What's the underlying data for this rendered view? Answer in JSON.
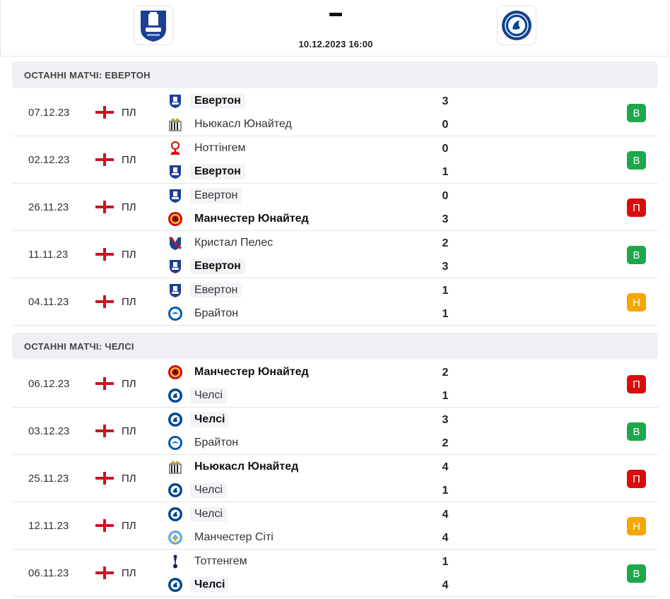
{
  "header": {
    "home_team": "Евертон",
    "away_team": "Челсі",
    "datetime": "10.12.2023 16:00"
  },
  "colors": {
    "win": "#1ca84b",
    "loss": "#d80d0d",
    "draw": "#f6a600",
    "everton": "#1b3f94",
    "chelsea": "#034694"
  },
  "sections": [
    {
      "title": "ОСТАННІ МАТЧІ: ЕВЕРТОН",
      "matches": [
        {
          "date": "07.12.23",
          "competition": "ПЛ",
          "flag": "england-flag-icon",
          "team1": {
            "name": "Евертон",
            "logo": "everton-icon",
            "winner": true,
            "focus": true
          },
          "team2": {
            "name": "Ньюкасл Юнайтед",
            "logo": "newcastle-icon",
            "winner": false,
            "focus": false
          },
          "score1": "3",
          "score2": "0",
          "result": "В",
          "result_type": "win"
        },
        {
          "date": "02.12.23",
          "competition": "ПЛ",
          "flag": "england-flag-icon",
          "team1": {
            "name": "Ноттінгем",
            "logo": "nottingham-icon",
            "winner": false,
            "focus": false
          },
          "team2": {
            "name": "Евертон",
            "logo": "everton-icon",
            "winner": true,
            "focus": true
          },
          "score1": "0",
          "score2": "1",
          "result": "В",
          "result_type": "win"
        },
        {
          "date": "26.11.23",
          "competition": "ПЛ",
          "flag": "england-flag-icon",
          "team1": {
            "name": "Евертон",
            "logo": "everton-icon",
            "winner": false,
            "focus": true
          },
          "team2": {
            "name": "Манчестер Юнайтед",
            "logo": "manutd-icon",
            "winner": true,
            "focus": false
          },
          "score1": "0",
          "score2": "3",
          "result": "П",
          "result_type": "loss"
        },
        {
          "date": "11.11.23",
          "competition": "ПЛ",
          "flag": "england-flag-icon",
          "team1": {
            "name": "Кристал Пелес",
            "logo": "crystal-palace-icon",
            "winner": false,
            "focus": false
          },
          "team2": {
            "name": "Евертон",
            "logo": "everton-icon",
            "winner": true,
            "focus": true
          },
          "score1": "2",
          "score2": "3",
          "result": "В",
          "result_type": "win"
        },
        {
          "date": "04.11.23",
          "competition": "ПЛ",
          "flag": "england-flag-icon",
          "team1": {
            "name": "Евертон",
            "logo": "everton-icon",
            "winner": false,
            "focus": true
          },
          "team2": {
            "name": "Брайтон",
            "logo": "brighton-icon",
            "winner": false,
            "focus": false
          },
          "score1": "1",
          "score2": "1",
          "result": "Н",
          "result_type": "draw"
        }
      ]
    },
    {
      "title": "ОСТАННІ МАТЧІ: ЧЕЛСІ",
      "matches": [
        {
          "date": "06.12.23",
          "competition": "ПЛ",
          "flag": "england-flag-icon",
          "team1": {
            "name": "Манчестер Юнайтед",
            "logo": "manutd-icon",
            "winner": true,
            "focus": false
          },
          "team2": {
            "name": "Челсі",
            "logo": "chelsea-icon",
            "winner": false,
            "focus": true
          },
          "score1": "2",
          "score2": "1",
          "result": "П",
          "result_type": "loss"
        },
        {
          "date": "03.12.23",
          "competition": "ПЛ",
          "flag": "england-flag-icon",
          "team1": {
            "name": "Челсі",
            "logo": "chelsea-icon",
            "winner": true,
            "focus": true
          },
          "team2": {
            "name": "Брайтон",
            "logo": "brighton-icon",
            "winner": false,
            "focus": false
          },
          "score1": "3",
          "score2": "2",
          "result": "В",
          "result_type": "win"
        },
        {
          "date": "25.11.23",
          "competition": "ПЛ",
          "flag": "england-flag-icon",
          "team1": {
            "name": "Ньюкасл Юнайтед",
            "logo": "newcastle-icon",
            "winner": true,
            "focus": false
          },
          "team2": {
            "name": "Челсі",
            "logo": "chelsea-icon",
            "winner": false,
            "focus": true
          },
          "score1": "4",
          "score2": "1",
          "result": "П",
          "result_type": "loss"
        },
        {
          "date": "12.11.23",
          "competition": "ПЛ",
          "flag": "england-flag-icon",
          "team1": {
            "name": "Челсі",
            "logo": "chelsea-icon",
            "winner": false,
            "focus": true
          },
          "team2": {
            "name": "Манчестер Сіті",
            "logo": "mancity-icon",
            "winner": false,
            "focus": false
          },
          "score1": "4",
          "score2": "4",
          "result": "Н",
          "result_type": "draw"
        },
        {
          "date": "06.11.23",
          "competition": "ПЛ",
          "flag": "england-flag-icon",
          "team1": {
            "name": "Тоттенгем",
            "logo": "tottenham-icon",
            "winner": false,
            "focus": false
          },
          "team2": {
            "name": "Челсі",
            "logo": "chelsea-icon",
            "winner": true,
            "focus": true
          },
          "score1": "1",
          "score2": "4",
          "result": "В",
          "result_type": "win"
        }
      ]
    }
  ]
}
